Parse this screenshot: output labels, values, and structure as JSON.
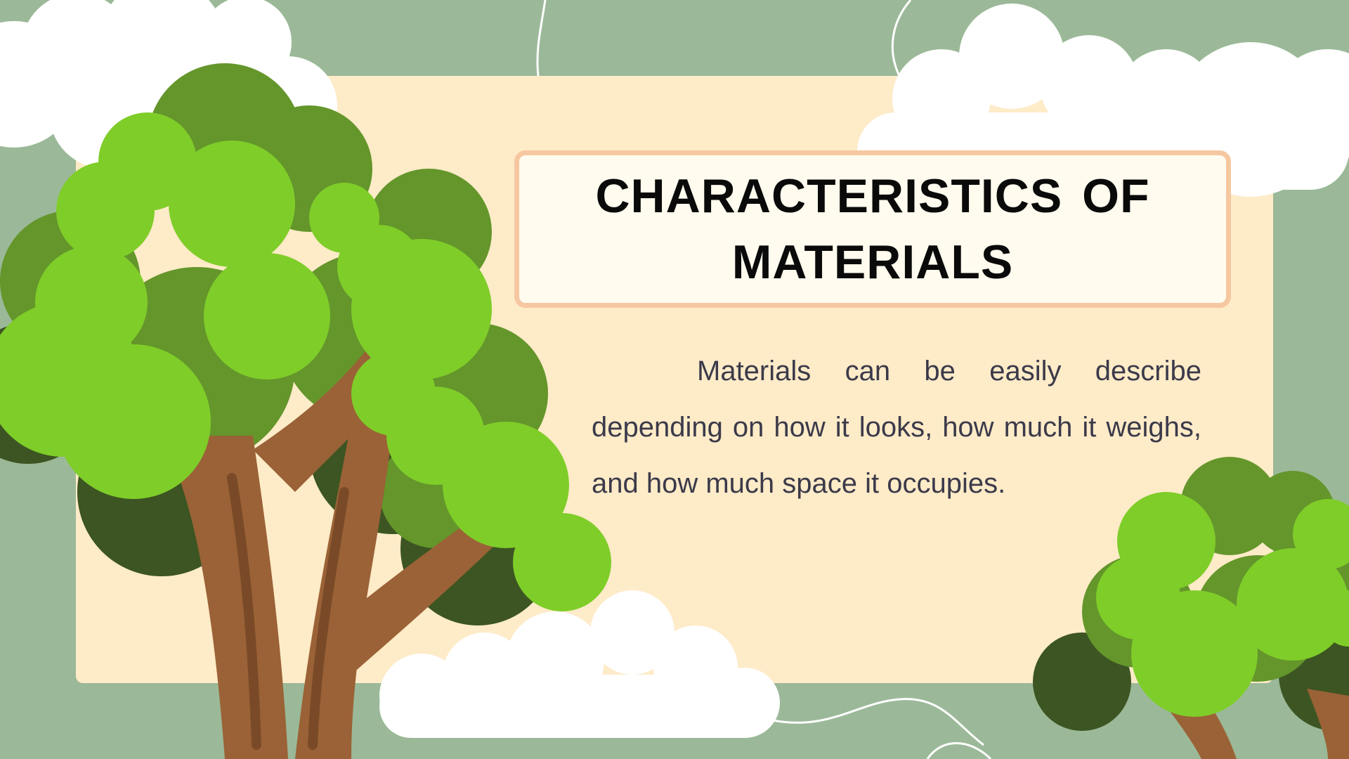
{
  "slide": {
    "title": "CHARACTERISTICS OF MATERIALS",
    "body": "Materials can be easily describe depending on how it looks, how much it weighs, and how much space it occupies."
  },
  "colors": {
    "background": "#9bb998",
    "card": "#feebc8",
    "title_box": "#fffbee",
    "title_border": "#f6c7a0",
    "leaf_light": "#7fcd29",
    "leaf_mid": "#64962b",
    "leaf_dark": "#3c5522",
    "trunk": "#9a6236",
    "cloud": "#ffffff"
  }
}
